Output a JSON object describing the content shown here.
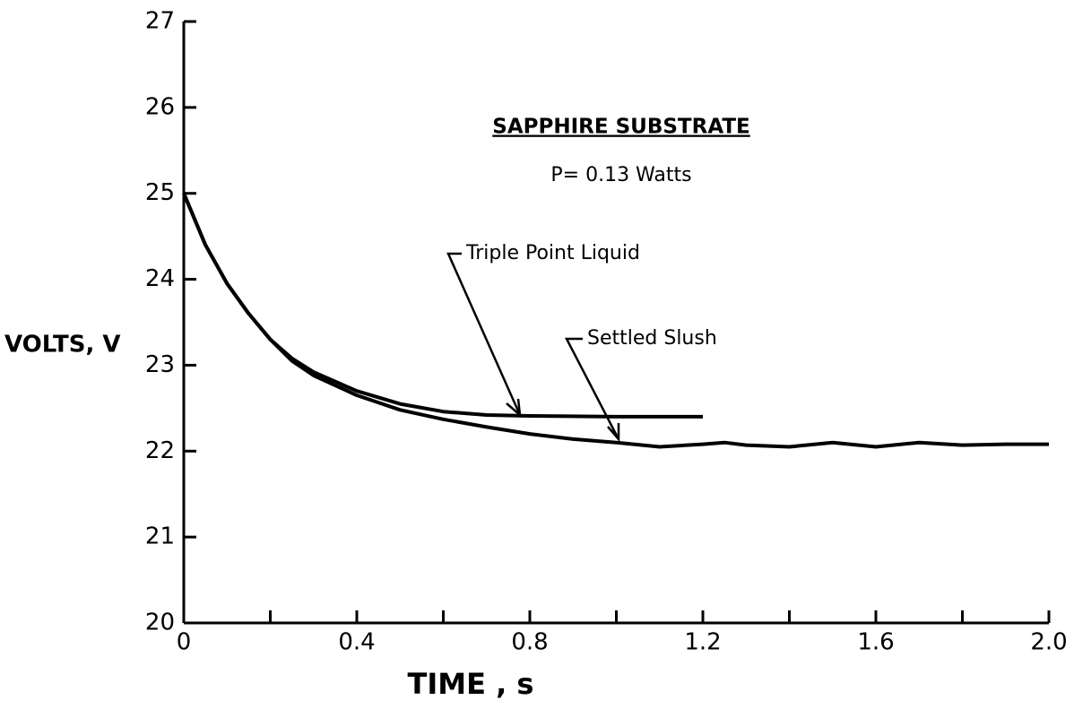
{
  "chart_data": {
    "type": "line",
    "title": "SAPPHIRE SUBSTRATE",
    "subtitle": "P= 0.13 Watts",
    "x_label": "TIME , s",
    "y_label": "VOLTS, V",
    "xlim": [
      0,
      2
    ],
    "ylim": [
      20,
      27
    ],
    "xticks": [
      0,
      0.4,
      0.8,
      1.2,
      1.6,
      {
        "value": 2,
        "label": "2.0"
      }
    ],
    "xminorticks": [
      0.2,
      0.6,
      1.0,
      1.4,
      1.8
    ],
    "yticks": [
      20,
      21,
      22,
      23,
      24,
      25,
      26,
      27
    ],
    "grid": false,
    "series": [
      {
        "name": "Triple Point Liquid",
        "color": "#000000",
        "x": [
          0,
          0.05,
          0.1,
          0.15,
          0.2,
          0.25,
          0.3,
          0.4,
          0.5,
          0.6,
          0.7,
          0.8,
          1.0,
          1.2
        ],
        "values": [
          25.0,
          24.4,
          23.95,
          23.6,
          23.3,
          23.08,
          22.92,
          22.7,
          22.55,
          22.46,
          22.42,
          22.41,
          22.4,
          22.4
        ]
      },
      {
        "name": "Settled Slush",
        "color": "#000000",
        "x": [
          0,
          0.05,
          0.1,
          0.15,
          0.2,
          0.25,
          0.3,
          0.4,
          0.5,
          0.6,
          0.7,
          0.8,
          0.9,
          1.0,
          1.1,
          1.2,
          1.25,
          1.3,
          1.4,
          1.5,
          1.6,
          1.7,
          1.8,
          1.9,
          2.0
        ],
        "values": [
          25.0,
          24.4,
          23.95,
          23.6,
          23.3,
          23.05,
          22.88,
          22.65,
          22.48,
          22.37,
          22.28,
          22.2,
          22.14,
          22.1,
          22.05,
          22.08,
          22.1,
          22.07,
          22.05,
          22.1,
          22.05,
          22.1,
          22.07,
          22.08,
          22.08
        ]
      }
    ]
  }
}
